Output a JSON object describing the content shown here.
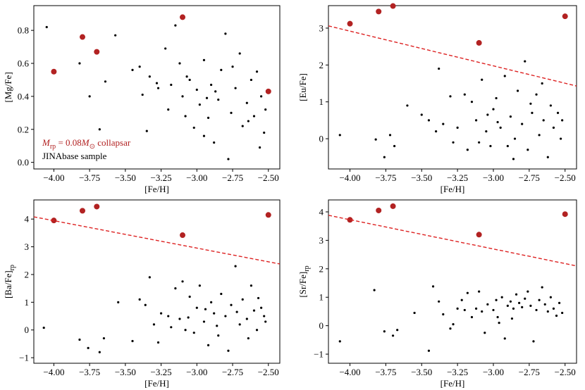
{
  "chart_data": [
    {
      "type": "scatter",
      "xlabel": "[Fe/H]",
      "ylabel": [
        {
          "text": "[Mg/Fe]"
        }
      ],
      "xlim": [
        -4.14,
        -2.42
      ],
      "ylim": [
        -0.04,
        0.95
      ],
      "xticks": [
        {
          "value": -4.0,
          "label": "−4.00"
        },
        {
          "value": -3.75,
          "label": "−3.75"
        },
        {
          "value": -3.5,
          "label": "−3.50"
        },
        {
          "value": -3.25,
          "label": "−3.25"
        },
        {
          "value": -3.0,
          "label": "−3.00"
        },
        {
          "value": -2.75,
          "label": "−2.75"
        },
        {
          "value": -2.5,
          "label": "−2.50"
        }
      ],
      "yticks": [
        {
          "value": 0,
          "label": "0.0"
        },
        0.2,
        0.4,
        0.6,
        0.8
      ],
      "legend": "lower left",
      "series": [
        {
          "name": [
            {
              "text": "JINAbase sample"
            }
          ],
          "color": "#000000",
          "marker": "small",
          "x": [
            -4.05,
            -3.82,
            -3.75,
            -3.68,
            -3.64,
            -3.57,
            -3.45,
            -3.4,
            -3.38,
            -3.35,
            -3.33,
            -3.28,
            -3.27,
            -3.22,
            -3.2,
            -3.15,
            -3.12,
            -3.1,
            -3.08,
            -3.05,
            -3.02,
            -3.0,
            -2.98,
            -2.95,
            -2.92,
            -2.9,
            -2.88,
            -2.85,
            -2.83,
            -2.8,
            -2.78,
            -2.76,
            -2.73,
            -2.7,
            -2.68,
            -2.65,
            -2.62,
            -2.6,
            -2.58,
            -2.56,
            -2.55,
            -2.53,
            -2.52,
            -2.95,
            -2.87,
            -3.07,
            -2.75,
            -2.64,
            -3.18,
            -2.93
          ],
          "values": [
            0.82,
            0.6,
            0.4,
            0.2,
            0.49,
            0.77,
            0.56,
            0.58,
            0.41,
            0.19,
            0.52,
            0.48,
            0.45,
            0.69,
            0.32,
            0.83,
            0.6,
            0.4,
            0.28,
            0.5,
            0.21,
            0.44,
            0.35,
            0.62,
            0.27,
            0.47,
            0.12,
            0.38,
            0.56,
            0.78,
            0.02,
            0.3,
            0.45,
            0.66,
            0.22,
            0.36,
            0.5,
            0.28,
            0.55,
            0.09,
            0.4,
            0.18,
            0.32,
            0.16,
            0.43,
            0.52,
            0.58,
            0.25,
            0.47,
            0.39
          ]
        },
        {
          "name": [
            {
              "text": "M",
              "italic": true
            },
            {
              "text": "rp",
              "sub": true
            },
            {
              "text": " = 0.08"
            },
            {
              "text": "M",
              "italic": true
            },
            {
              "text": "⊙",
              "sub": true
            },
            {
              "text": " collapsar"
            }
          ],
          "color": "#b22222",
          "marker": "large",
          "x": [
            -4.0,
            -3.8,
            -3.7,
            -3.1,
            -2.5
          ],
          "values": [
            0.55,
            0.76,
            0.67,
            0.88,
            0.43
          ]
        }
      ]
    },
    {
      "type": "scatter",
      "xlabel": "[Fe/H]",
      "ylabel": [
        {
          "text": "[Eu/Fe]"
        }
      ],
      "xlim": [
        -4.15,
        -2.42
      ],
      "ylim": [
        -0.82,
        3.61
      ],
      "xticks": [
        {
          "value": -4.0,
          "label": "−4.00"
        },
        {
          "value": -3.75,
          "label": "−3.75"
        },
        {
          "value": -3.5,
          "label": "−3.50"
        },
        {
          "value": -3.25,
          "label": "−3.25"
        },
        {
          "value": -3.0,
          "label": "−3.00"
        },
        {
          "value": -2.75,
          "label": "−2.75"
        },
        {
          "value": -2.5,
          "label": "−2.50"
        }
      ],
      "yticks": [
        0,
        1,
        2,
        3
      ],
      "series": [
        {
          "color": "#000000",
          "marker": "small",
          "x": [
            -4.07,
            -3.82,
            -3.76,
            -3.72,
            -3.69,
            -3.6,
            -3.5,
            -3.45,
            -3.4,
            -3.38,
            -3.35,
            -3.3,
            -3.28,
            -3.25,
            -3.2,
            -3.18,
            -3.15,
            -3.12,
            -3.1,
            -3.08,
            -3.05,
            -3.02,
            -3.0,
            -2.98,
            -2.95,
            -2.92,
            -2.9,
            -2.88,
            -2.85,
            -2.83,
            -2.8,
            -2.78,
            -2.76,
            -2.73,
            -2.7,
            -2.68,
            -2.65,
            -2.62,
            -2.6,
            -2.58,
            -2.55,
            -2.53,
            -2.52,
            -2.86,
            -3.04,
            -2.97,
            -2.74,
            -2.66
          ],
          "values": [
            0.1,
            -0.02,
            -0.5,
            0.1,
            -0.2,
            0.9,
            0.65,
            0.5,
            0.2,
            1.9,
            0.4,
            1.15,
            -0.1,
            0.3,
            1.2,
            -0.3,
            1.0,
            0.5,
            -0.1,
            1.6,
            0.2,
            -0.2,
            0.8,
            1.1,
            0.3,
            1.7,
            -0.2,
            0.6,
            0.0,
            1.3,
            0.4,
            2.1,
            -0.3,
            0.7,
            1.2,
            0.1,
            0.5,
            -0.5,
            0.9,
            0.3,
            0.7,
            0.0,
            0.5,
            -0.55,
            0.65,
            0.45,
            0.95,
            1.5
          ]
        },
        {
          "color": "#b22222",
          "marker": "large",
          "x": [
            -4.0,
            -3.8,
            -3.7,
            -3.1,
            -2.5
          ],
          "values": [
            3.12,
            3.45,
            3.6,
            2.6,
            3.32
          ]
        },
        {
          "color": "#dd2222",
          "marker": "dashed-line",
          "x": [
            -4.15,
            -2.42
          ],
          "values": [
            3.06,
            1.43
          ]
        }
      ]
    },
    {
      "type": "scatter",
      "xlabel": "[Fe/H]",
      "ylabel": [
        {
          "text": "[Ba/Fe]"
        },
        {
          "text": "rp",
          "sub": true
        }
      ],
      "xlim": [
        -4.14,
        -2.42
      ],
      "ylim": [
        -1.2,
        4.69
      ],
      "xticks": [
        {
          "value": -4.0,
          "label": "−4.00"
        },
        {
          "value": -3.75,
          "label": "−3.75"
        },
        {
          "value": -3.5,
          "label": "−3.50"
        },
        {
          "value": -3.25,
          "label": "−3.25"
        },
        {
          "value": -3.0,
          "label": "−3.00"
        },
        {
          "value": -2.75,
          "label": "−2.75"
        },
        {
          "value": -2.5,
          "label": "−2.50"
        }
      ],
      "yticks": [
        {
          "value": -1,
          "label": "−1"
        },
        0,
        1,
        2,
        3,
        4
      ],
      "series": [
        {
          "color": "#000000",
          "marker": "small",
          "x": [
            -4.07,
            -3.82,
            -3.76,
            -3.68,
            -3.65,
            -3.55,
            -3.45,
            -3.4,
            -3.36,
            -3.33,
            -3.3,
            -3.27,
            -3.25,
            -3.2,
            -3.18,
            -3.15,
            -3.12,
            -3.1,
            -3.08,
            -3.05,
            -3.02,
            -3.0,
            -2.98,
            -2.95,
            -2.92,
            -2.9,
            -2.88,
            -2.85,
            -2.83,
            -2.8,
            -2.78,
            -2.76,
            -2.73,
            -2.7,
            -2.68,
            -2.65,
            -2.62,
            -2.6,
            -2.58,
            -2.55,
            -2.53,
            -2.52,
            -2.94,
            -3.06,
            -2.86,
            -2.72,
            -2.64,
            -2.57
          ],
          "values": [
            0.08,
            -0.35,
            -0.65,
            -0.8,
            -0.3,
            1.0,
            -0.4,
            1.1,
            0.9,
            1.9,
            0.2,
            -0.45,
            0.6,
            0.5,
            0.1,
            1.5,
            0.4,
            1.75,
            0.0,
            1.2,
            -0.1,
            0.8,
            1.6,
            0.3,
            -0.55,
            1.0,
            0.6,
            -0.2,
            1.3,
            0.5,
            -0.75,
            0.9,
            2.3,
            0.2,
            1.1,
            0.4,
            1.6,
            0.7,
            0.0,
            0.8,
            0.5,
            0.3,
            0.75,
            0.45,
            0.15,
            0.65,
            -0.3,
            1.15
          ]
        },
        {
          "color": "#b22222",
          "marker": "large",
          "x": [
            -4.0,
            -3.8,
            -3.7,
            -3.1,
            -2.5
          ],
          "values": [
            3.95,
            4.3,
            4.45,
            3.42,
            4.15
          ]
        },
        {
          "color": "#dd2222",
          "marker": "dashed-line",
          "x": [
            -4.14,
            -2.42
          ],
          "values": [
            4.08,
            2.38
          ]
        }
      ]
    },
    {
      "type": "scatter",
      "xlabel": "[Fe/H]",
      "ylabel": [
        {
          "text": "[Sr/Fe]"
        },
        {
          "text": "rp",
          "sub": true
        }
      ],
      "xlim": [
        -4.15,
        -2.42
      ],
      "ylim": [
        -1.32,
        4.42
      ],
      "xticks": [
        {
          "value": -4.0,
          "label": "−4.00"
        },
        {
          "value": -3.75,
          "label": "−3.75"
        },
        {
          "value": -3.5,
          "label": "−3.50"
        },
        {
          "value": -3.25,
          "label": "−3.25"
        },
        {
          "value": -3.0,
          "label": "−3.00"
        },
        {
          "value": -2.75,
          "label": "−2.75"
        },
        {
          "value": -2.5,
          "label": "−2.50"
        }
      ],
      "yticks": [
        {
          "value": -1,
          "label": "−1"
        },
        0,
        1,
        2,
        3,
        4
      ],
      "series": [
        {
          "color": "#000000",
          "marker": "small",
          "x": [
            -4.07,
            -3.83,
            -3.76,
            -3.7,
            -3.67,
            -3.55,
            -3.45,
            -3.42,
            -3.38,
            -3.35,
            -3.3,
            -3.28,
            -3.25,
            -3.2,
            -3.18,
            -3.15,
            -3.12,
            -3.1,
            -3.08,
            -3.06,
            -3.04,
            -3.0,
            -2.98,
            -2.96,
            -2.94,
            -2.92,
            -2.9,
            -2.88,
            -2.86,
            -2.84,
            -2.82,
            -2.8,
            -2.78,
            -2.76,
            -2.74,
            -2.72,
            -2.7,
            -2.68,
            -2.66,
            -2.64,
            -2.62,
            -2.6,
            -2.58,
            -2.56,
            -2.54,
            -2.52,
            -2.97,
            -2.87,
            -3.22
          ],
          "values": [
            -0.55,
            1.25,
            -0.2,
            -0.35,
            -0.15,
            0.45,
            -0.88,
            1.38,
            0.85,
            0.4,
            -0.1,
            0.05,
            0.6,
            0.55,
            1.15,
            0.3,
            0.6,
            1.2,
            0.5,
            -0.25,
            0.75,
            0.55,
            0.9,
            0.1,
            1.0,
            -0.45,
            0.7,
            0.85,
            0.6,
            1.1,
            0.8,
            0.65,
            0.95,
            1.2,
            0.7,
            -0.55,
            0.55,
            0.9,
            1.35,
            0.75,
            0.5,
            1.0,
            0.6,
            0.35,
            0.8,
            0.45,
            0.3,
            0.25,
            0.9
          ]
        },
        {
          "color": "#b22222",
          "marker": "large",
          "x": [
            -4.0,
            -3.8,
            -3.7,
            -3.1,
            -2.5
          ],
          "values": [
            3.72,
            4.05,
            4.2,
            3.2,
            3.92
          ]
        },
        {
          "color": "#dd2222",
          "marker": "dashed-line",
          "x": [
            -4.15,
            -2.42
          ],
          "values": [
            3.88,
            2.1
          ]
        }
      ]
    }
  ]
}
